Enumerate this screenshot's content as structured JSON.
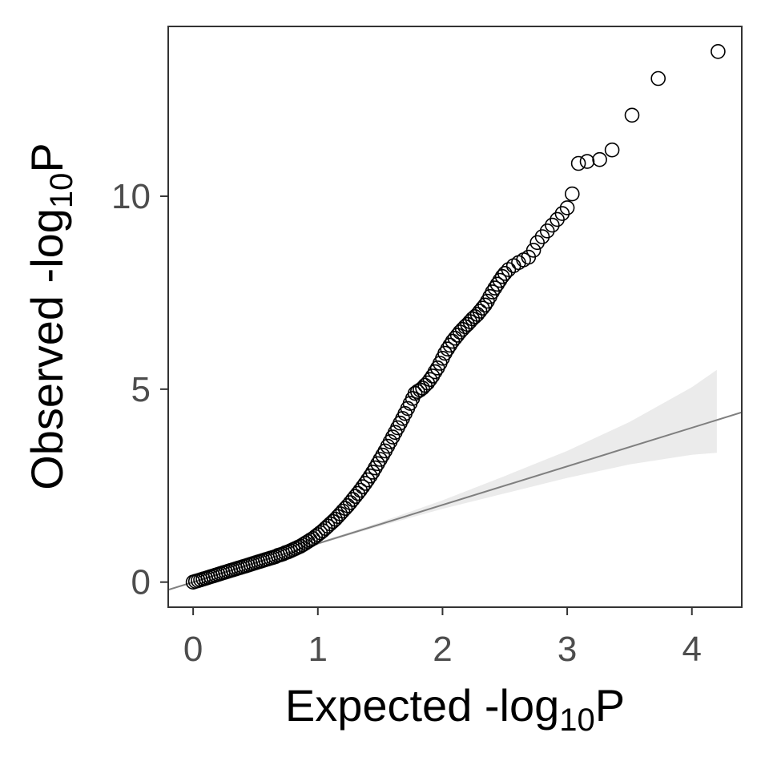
{
  "chart_data": {
    "type": "scatter",
    "title": "",
    "xlabel": {
      "prefix": "Expected -log",
      "subscript": "10",
      "suffix": "P"
    },
    "ylabel": {
      "prefix": "Observed -log",
      "subscript": "10",
      "suffix": "P"
    },
    "xlim": [
      -0.2,
      4.4
    ],
    "ylim": [
      -0.65,
      14.4
    ],
    "x_ticks": [
      0,
      1,
      2,
      3,
      4
    ],
    "x_tick_labels": [
      "0",
      "1",
      "2",
      "3",
      "4"
    ],
    "y_ticks": [
      0,
      5,
      10
    ],
    "y_tick_labels": [
      "0",
      "5",
      "10"
    ],
    "grid": false,
    "legend": "none",
    "reference_line": {
      "slope": 1,
      "intercept": 0
    },
    "confidence_band": {
      "x": [
        0.8,
        1.5,
        2.0,
        2.5,
        3.0,
        3.5,
        4.0,
        4.2
      ],
      "lower": [
        0.78,
        1.45,
        1.9,
        2.3,
        2.7,
        3.05,
        3.3,
        3.35
      ],
      "upper": [
        0.82,
        1.55,
        2.12,
        2.75,
        3.4,
        4.15,
        5.05,
        5.5
      ]
    },
    "series": [
      {
        "points": [
          [
            0.0,
            0.0
          ],
          [
            0.02,
            0.02
          ],
          [
            0.04,
            0.04
          ],
          [
            0.06,
            0.06
          ],
          [
            0.08,
            0.08
          ],
          [
            0.1,
            0.1
          ],
          [
            0.12,
            0.12
          ],
          [
            0.14,
            0.14
          ],
          [
            0.16,
            0.16
          ],
          [
            0.18,
            0.18
          ],
          [
            0.2,
            0.2
          ],
          [
            0.22,
            0.22
          ],
          [
            0.24,
            0.24
          ],
          [
            0.26,
            0.26
          ],
          [
            0.28,
            0.28
          ],
          [
            0.3,
            0.3
          ],
          [
            0.32,
            0.32
          ],
          [
            0.34,
            0.34
          ],
          [
            0.36,
            0.36
          ],
          [
            0.38,
            0.38
          ],
          [
            0.4,
            0.4
          ],
          [
            0.42,
            0.42
          ],
          [
            0.44,
            0.44
          ],
          [
            0.46,
            0.46
          ],
          [
            0.48,
            0.48
          ],
          [
            0.5,
            0.5
          ],
          [
            0.52,
            0.52
          ],
          [
            0.54,
            0.54
          ],
          [
            0.56,
            0.56
          ],
          [
            0.58,
            0.58
          ],
          [
            0.6,
            0.6
          ],
          [
            0.62,
            0.62
          ],
          [
            0.64,
            0.64
          ],
          [
            0.66,
            0.66
          ],
          [
            0.68,
            0.69
          ],
          [
            0.7,
            0.71
          ],
          [
            0.72,
            0.73
          ],
          [
            0.74,
            0.76
          ],
          [
            0.76,
            0.78
          ],
          [
            0.78,
            0.81
          ],
          [
            0.8,
            0.84
          ],
          [
            0.82,
            0.87
          ],
          [
            0.84,
            0.9
          ],
          [
            0.86,
            0.93
          ],
          [
            0.88,
            0.97
          ],
          [
            0.9,
            1.01
          ],
          [
            0.92,
            1.05
          ],
          [
            0.94,
            1.09
          ],
          [
            0.96,
            1.13
          ],
          [
            0.98,
            1.18
          ],
          [
            1.0,
            1.23
          ],
          [
            1.02,
            1.28
          ],
          [
            1.04,
            1.33
          ],
          [
            1.06,
            1.39
          ],
          [
            1.08,
            1.45
          ],
          [
            1.1,
            1.51
          ],
          [
            1.12,
            1.57
          ],
          [
            1.14,
            1.63
          ],
          [
            1.16,
            1.7
          ],
          [
            1.18,
            1.77
          ],
          [
            1.2,
            1.84
          ],
          [
            1.22,
            1.91
          ],
          [
            1.24,
            1.98
          ],
          [
            1.26,
            2.06
          ],
          [
            1.28,
            2.14
          ],
          [
            1.3,
            2.22
          ],
          [
            1.32,
            2.3
          ],
          [
            1.34,
            2.38
          ],
          [
            1.36,
            2.47
          ],
          [
            1.38,
            2.56
          ],
          [
            1.4,
            2.65
          ],
          [
            1.42,
            2.75
          ],
          [
            1.44,
            2.85
          ],
          [
            1.46,
            2.96
          ],
          [
            1.48,
            3.07
          ],
          [
            1.5,
            3.18
          ],
          [
            1.52,
            3.29
          ],
          [
            1.54,
            3.4
          ],
          [
            1.56,
            3.52
          ],
          [
            1.58,
            3.64
          ],
          [
            1.6,
            3.76
          ],
          [
            1.62,
            3.88
          ],
          [
            1.64,
            4.0
          ],
          [
            1.66,
            4.12
          ],
          [
            1.68,
            4.24
          ],
          [
            1.7,
            4.37
          ],
          [
            1.72,
            4.5
          ],
          [
            1.74,
            4.63
          ],
          [
            1.76,
            4.76
          ],
          [
            1.78,
            4.89
          ],
          [
            1.8,
            4.94
          ],
          [
            1.82,
            4.98
          ],
          [
            1.84,
            5.03
          ],
          [
            1.86,
            5.1
          ],
          [
            1.88,
            5.16
          ],
          [
            1.9,
            5.25
          ],
          [
            1.92,
            5.34
          ],
          [
            1.94,
            5.45
          ],
          [
            1.96,
            5.55
          ],
          [
            1.98,
            5.67
          ],
          [
            2.0,
            5.8
          ],
          [
            2.02,
            5.93
          ],
          [
            2.04,
            6.04
          ],
          [
            2.06,
            6.14
          ],
          [
            2.08,
            6.24
          ],
          [
            2.1,
            6.32
          ],
          [
            2.12,
            6.4
          ],
          [
            2.14,
            6.48
          ],
          [
            2.16,
            6.55
          ],
          [
            2.18,
            6.62
          ],
          [
            2.2,
            6.68
          ],
          [
            2.22,
            6.75
          ],
          [
            2.24,
            6.82
          ],
          [
            2.26,
            6.88
          ],
          [
            2.28,
            6.94
          ],
          [
            2.3,
            7.02
          ],
          [
            2.32,
            7.1
          ],
          [
            2.34,
            7.18
          ],
          [
            2.36,
            7.28
          ],
          [
            2.38,
            7.4
          ],
          [
            2.4,
            7.52
          ],
          [
            2.42,
            7.62
          ],
          [
            2.44,
            7.72
          ],
          [
            2.46,
            7.82
          ],
          [
            2.48,
            7.92
          ],
          [
            2.5,
            8.0
          ],
          [
            2.53,
            8.1
          ],
          [
            2.57,
            8.2
          ],
          [
            2.61,
            8.28
          ],
          [
            2.65,
            8.35
          ],
          [
            2.69,
            8.42
          ],
          [
            2.73,
            8.6
          ],
          [
            2.76,
            8.8
          ],
          [
            2.8,
            8.95
          ],
          [
            2.84,
            9.1
          ],
          [
            2.88,
            9.25
          ],
          [
            2.92,
            9.4
          ],
          [
            2.96,
            9.55
          ],
          [
            3.0,
            9.7
          ],
          [
            3.04,
            10.06
          ],
          [
            3.09,
            10.85
          ],
          [
            3.16,
            10.9
          ],
          [
            3.26,
            10.95
          ],
          [
            3.36,
            11.2
          ],
          [
            3.52,
            12.1
          ],
          [
            3.73,
            13.05
          ],
          [
            4.21,
            13.75
          ]
        ]
      }
    ]
  }
}
